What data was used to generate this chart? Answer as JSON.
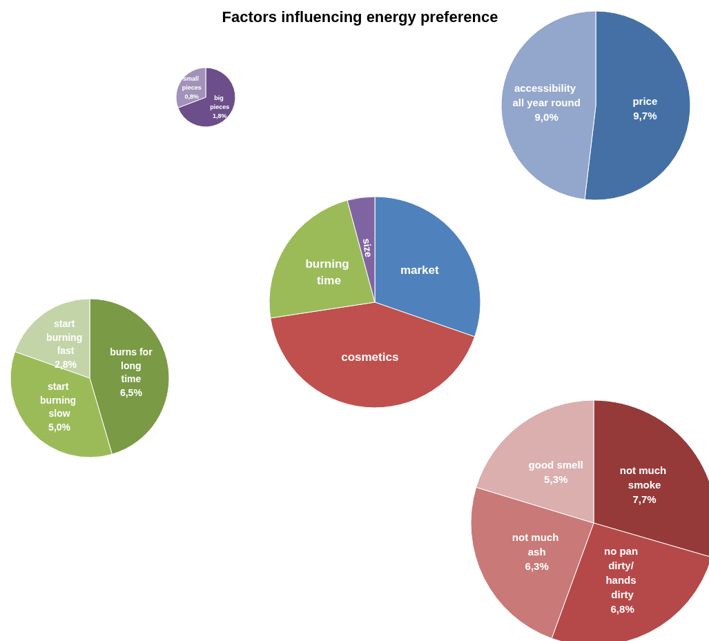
{
  "chart_data": [
    {
      "type": "pie",
      "title": "Factors influencing energy preference",
      "categories": [
        "market",
        "cosmetics",
        "burning time",
        "size"
      ],
      "values": [
        30.3,
        42.3,
        23.2,
        4.2
      ],
      "colors": [
        "#4f81bd",
        "#c0504d",
        "#9bbb59",
        "#8064a2"
      ]
    },
    {
      "type": "pie",
      "categories": [
        "big pieces",
        "small pieces"
      ],
      "values": [
        1.8,
        0.8
      ],
      "colors": [
        "#6b4e8a",
        "#a291b8"
      ],
      "value_labels": [
        "1,8%",
        "0,8%"
      ]
    },
    {
      "type": "pie",
      "categories": [
        "price",
        "accessibility all year round"
      ],
      "values": [
        9.7,
        9.0
      ],
      "colors": [
        "#4470a5",
        "#93a6cc"
      ],
      "value_labels": [
        "9,7%",
        "9,0%"
      ]
    },
    {
      "type": "pie",
      "categories": [
        "burns for long time",
        "start burning slow",
        "start burning fast"
      ],
      "values": [
        6.5,
        5.0,
        2.8
      ],
      "colors": [
        "#7a9a45",
        "#9bbb59",
        "#c3d4a8"
      ],
      "value_labels": [
        "6,5%",
        "5,0%",
        "2,8%"
      ]
    },
    {
      "type": "pie",
      "categories": [
        "not much smoke",
        "no pan dirty/ hands dirty",
        "not much ash",
        "good smell"
      ],
      "values": [
        7.7,
        6.8,
        6.3,
        5.3
      ],
      "colors": [
        "#953a39",
        "#b5494a",
        "#c97977",
        "#dbafae"
      ],
      "value_labels": [
        "7,7%",
        "6,8%",
        "6,3%",
        "5,3%"
      ]
    }
  ]
}
